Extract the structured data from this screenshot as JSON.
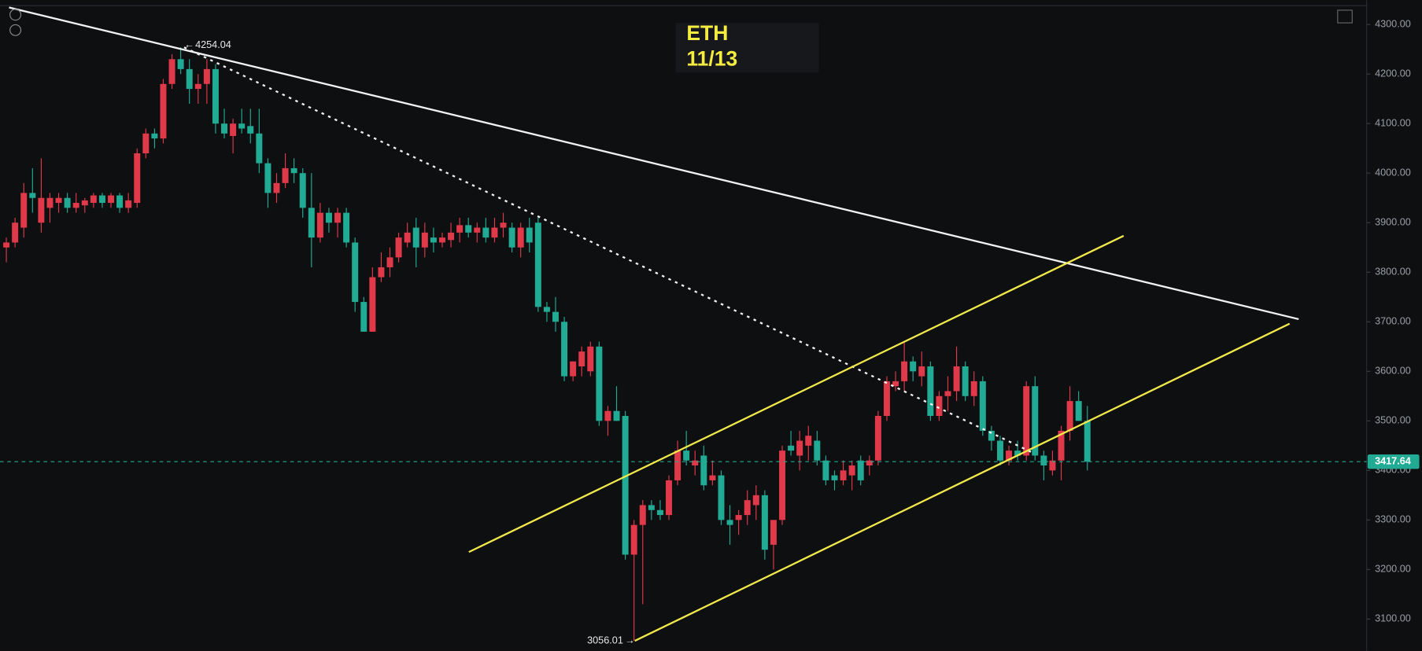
{
  "chart_data": {
    "type": "candlestick",
    "title": "ETH",
    "subtitle": "11/13",
    "up_color": "#e0394a",
    "down_color": "#22ab94",
    "ylim": [
      3036,
      4349
    ],
    "yticks": [
      {
        "value": 3100,
        "label": "3100.00"
      },
      {
        "value": 3200,
        "label": "3200.00"
      },
      {
        "value": 3300,
        "label": "3300.00"
      },
      {
        "value": 3400,
        "label": "3400.00"
      },
      {
        "value": 3500,
        "label": "3500.00"
      },
      {
        "value": 3600,
        "label": "3600.00"
      },
      {
        "value": 3700,
        "label": "3700.00"
      },
      {
        "value": 3800,
        "label": "3800.00"
      },
      {
        "value": 3900,
        "label": "3900.00"
      },
      {
        "value": 4000,
        "label": "4000.00"
      },
      {
        "value": 4100,
        "label": "4100.00"
      },
      {
        "value": 4200,
        "label": "4200.00"
      },
      {
        "value": 4300,
        "label": "4300.00"
      }
    ],
    "candles": [
      [
        3850,
        3870,
        3820,
        3860
      ],
      [
        3860,
        3910,
        3850,
        3900
      ],
      [
        3890,
        3980,
        3870,
        3960
      ],
      [
        3960,
        4010,
        3920,
        3950
      ],
      [
        3900,
        4030,
        3880,
        3950
      ],
      [
        3930,
        3960,
        3900,
        3950
      ],
      [
        3940,
        3960,
        3920,
        3950
      ],
      [
        3950,
        3960,
        3920,
        3930
      ],
      [
        3930,
        3960,
        3920,
        3940
      ],
      [
        3935,
        3950,
        3920,
        3945
      ],
      [
        3940,
        3960,
        3930,
        3955
      ],
      [
        3955,
        3960,
        3930,
        3940
      ],
      [
        3940,
        3960,
        3930,
        3955
      ],
      [
        3955,
        3960,
        3920,
        3930
      ],
      [
        3930,
        3960,
        3920,
        3945
      ],
      [
        3940,
        4050,
        3930,
        4040
      ],
      [
        4040,
        4090,
        4030,
        4080
      ],
      [
        4080,
        4090,
        4050,
        4070
      ],
      [
        4070,
        4190,
        4060,
        4180
      ],
      [
        4180,
        4240,
        4170,
        4230
      ],
      [
        4230,
        4254.04,
        4200,
        4210
      ],
      [
        4210,
        4230,
        4140,
        4170
      ],
      [
        4170,
        4200,
        4140,
        4180
      ],
      [
        4180,
        4230,
        4140,
        4210
      ],
      [
        4210,
        4220,
        4080,
        4100
      ],
      [
        4100,
        4130,
        4070,
        4080
      ],
      [
        4075,
        4110,
        4040,
        4100
      ],
      [
        4100,
        4130,
        4080,
        4090
      ],
      [
        4095,
        4130,
        4060,
        4080
      ],
      [
        4080,
        4130,
        4000,
        4020
      ],
      [
        4020,
        4030,
        3930,
        3960
      ],
      [
        3960,
        4000,
        3940,
        3980
      ],
      [
        3980,
        4040,
        3970,
        4010
      ],
      [
        4010,
        4030,
        3980,
        4000
      ],
      [
        4000,
        4010,
        3910,
        3930
      ],
      [
        3930,
        4000,
        3810,
        3870
      ],
      [
        3870,
        3940,
        3860,
        3920
      ],
      [
        3920,
        3930,
        3880,
        3900
      ],
      [
        3900,
        3930,
        3870,
        3920
      ],
      [
        3920,
        3930,
        3850,
        3860
      ],
      [
        3860,
        3870,
        3720,
        3740
      ],
      [
        3740,
        3750,
        3680,
        3680
      ],
      [
        3680,
        3810,
        3680,
        3790
      ],
      [
        3790,
        3840,
        3780,
        3810
      ],
      [
        3810,
        3850,
        3790,
        3830
      ],
      [
        3830,
        3880,
        3820,
        3870
      ],
      [
        3860,
        3900,
        3850,
        3880
      ],
      [
        3890,
        3910,
        3810,
        3850
      ],
      [
        3850,
        3900,
        3830,
        3880
      ],
      [
        3870,
        3890,
        3840,
        3860
      ],
      [
        3860,
        3880,
        3850,
        3870
      ],
      [
        3865,
        3900,
        3850,
        3880
      ],
      [
        3880,
        3910,
        3860,
        3895
      ],
      [
        3895,
        3910,
        3870,
        3880
      ],
      [
        3880,
        3900,
        3860,
        3890
      ],
      [
        3890,
        3910,
        3860,
        3870
      ],
      [
        3870,
        3910,
        3860,
        3890
      ],
      [
        3890,
        3920,
        3870,
        3900
      ],
      [
        3890,
        3900,
        3840,
        3850
      ],
      [
        3850,
        3900,
        3830,
        3890
      ],
      [
        3890,
        3910,
        3840,
        3860
      ],
      [
        3900,
        3910,
        3720,
        3730
      ],
      [
        3730,
        3740,
        3700,
        3720
      ],
      [
        3720,
        3750,
        3680,
        3700
      ],
      [
        3700,
        3710,
        3580,
        3590
      ],
      [
        3590,
        3620,
        3580,
        3620
      ],
      [
        3610,
        3650,
        3590,
        3640
      ],
      [
        3600,
        3660,
        3590,
        3650
      ],
      [
        3650,
        3660,
        3490,
        3500
      ],
      [
        3500,
        3530,
        3470,
        3520
      ],
      [
        3520,
        3570,
        3500,
        3500
      ],
      [
        3510,
        3520,
        3220,
        3230
      ],
      [
        3230,
        3300,
        3056.01,
        3290
      ],
      [
        3290,
        3340,
        3130,
        3330
      ],
      [
        3330,
        3340,
        3300,
        3320
      ],
      [
        3320,
        3340,
        3300,
        3310
      ],
      [
        3310,
        3390,
        3300,
        3380
      ],
      [
        3380,
        3460,
        3370,
        3440
      ],
      [
        3440,
        3480,
        3410,
        3420
      ],
      [
        3410,
        3440,
        3390,
        3420
      ],
      [
        3430,
        3450,
        3360,
        3370
      ],
      [
        3380,
        3420,
        3370,
        3390
      ],
      [
        3390,
        3400,
        3290,
        3300
      ],
      [
        3300,
        3330,
        3250,
        3290
      ],
      [
        3300,
        3320,
        3270,
        3310
      ],
      [
        3310,
        3360,
        3290,
        3340
      ],
      [
        3330,
        3370,
        3300,
        3350
      ],
      [
        3350,
        3360,
        3220,
        3240
      ],
      [
        3250,
        3300,
        3200,
        3300
      ],
      [
        3300,
        3450,
        3290,
        3440
      ],
      [
        3450,
        3480,
        3430,
        3440
      ],
      [
        3430,
        3480,
        3400,
        3460
      ],
      [
        3450,
        3490,
        3420,
        3470
      ],
      [
        3460,
        3480,
        3410,
        3420
      ],
      [
        3420,
        3430,
        3370,
        3380
      ],
      [
        3390,
        3400,
        3360,
        3380
      ],
      [
        3380,
        3420,
        3370,
        3400
      ],
      [
        3390,
        3420,
        3360,
        3410
      ],
      [
        3420,
        3430,
        3370,
        3380
      ],
      [
        3410,
        3430,
        3390,
        3420
      ],
      [
        3420,
        3520,
        3410,
        3510
      ],
      [
        3510,
        3590,
        3500,
        3580
      ],
      [
        3570,
        3600,
        3560,
        3580
      ],
      [
        3580,
        3660,
        3560,
        3620
      ],
      [
        3620,
        3630,
        3580,
        3600
      ],
      [
        3590,
        3640,
        3570,
        3610
      ],
      [
        3610,
        3620,
        3500,
        3510
      ],
      [
        3510,
        3560,
        3500,
        3550
      ],
      [
        3550,
        3590,
        3520,
        3560
      ],
      [
        3560,
        3650,
        3540,
        3610
      ],
      [
        3610,
        3620,
        3540,
        3550
      ],
      [
        3550,
        3600,
        3530,
        3580
      ],
      [
        3580,
        3590,
        3470,
        3480
      ],
      [
        3480,
        3490,
        3440,
        3460
      ],
      [
        3460,
        3470,
        3410,
        3420
      ],
      [
        3420,
        3450,
        3410,
        3440
      ],
      [
        3440,
        3460,
        3420,
        3430
      ],
      [
        3430,
        3580,
        3420,
        3570
      ],
      [
        3570,
        3590,
        3420,
        3430
      ],
      [
        3430,
        3440,
        3380,
        3410
      ],
      [
        3400,
        3440,
        3390,
        3420
      ],
      [
        3420,
        3490,
        3380,
        3480
      ],
      [
        3480,
        3570,
        3460,
        3540
      ],
      [
        3540,
        3560,
        3500,
        3500
      ],
      [
        3500,
        3530,
        3400,
        3417.64
      ]
    ]
  }
}
